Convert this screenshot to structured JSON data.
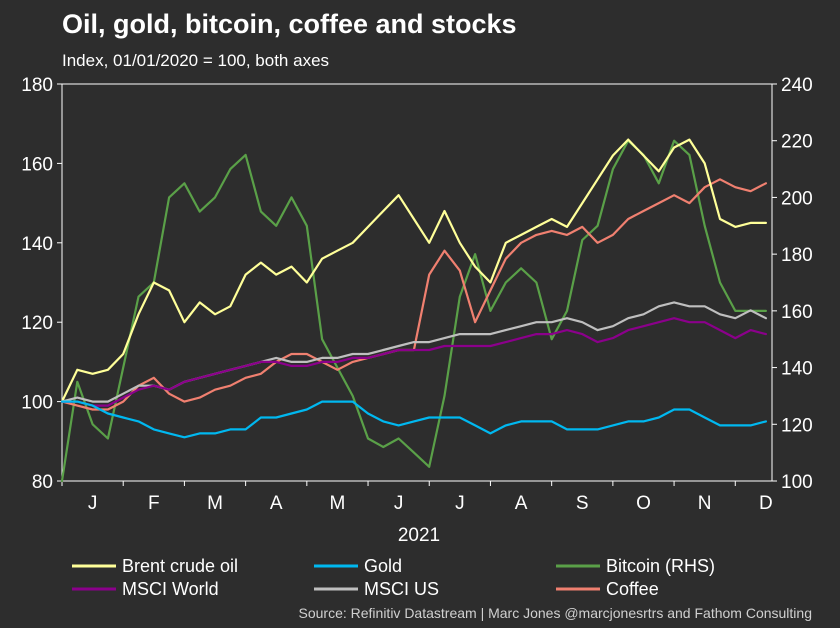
{
  "title": "Oil, gold, bitcoin, coffee and stocks",
  "subtitle": "Index, 01/01/2020 = 100, both axes",
  "source": "Source: Refinitiv Datastream | Marc Jones @marcjonesrtrs and Fathom Consulting",
  "chart_data": {
    "type": "line",
    "title": "Oil, gold, bitcoin, coffee and stocks",
    "subtitle": "Index, 01/01/2020 = 100, both axes",
    "xlabel": "2021",
    "x_ticks": [
      "J",
      "F",
      "M",
      "A",
      "M",
      "J",
      "J",
      "A",
      "S",
      "O",
      "N",
      "D"
    ],
    "y_left": {
      "range": [
        80,
        180
      ],
      "ticks": [
        "80",
        "100",
        "120",
        "140",
        "160",
        "180"
      ]
    },
    "y_right": {
      "range": [
        100,
        240
      ],
      "ticks": [
        "100",
        "120",
        "140",
        "160",
        "180",
        "200",
        "220",
        "240"
      ]
    },
    "x_range": [
      0,
      11.6
    ],
    "grid": false,
    "legend_position": "bottom",
    "series": [
      {
        "name": "Brent crude oil",
        "axis": "left",
        "color": "#ffff99",
        "x": [
          0,
          0.25,
          0.5,
          0.75,
          1,
          1.25,
          1.5,
          1.75,
          2,
          2.25,
          2.5,
          2.75,
          3,
          3.25,
          3.5,
          3.75,
          4,
          4.25,
          4.5,
          4.75,
          5,
          5.25,
          5.5,
          5.75,
          6,
          6.25,
          6.5,
          6.75,
          7,
          7.25,
          7.5,
          7.75,
          8,
          8.25,
          8.5,
          8.75,
          9,
          9.25,
          9.5,
          9.75,
          10,
          10.25,
          10.5,
          10.75,
          11,
          11.25,
          11.5
        ],
        "values": [
          100,
          108,
          107,
          108,
          112,
          122,
          130,
          128,
          120,
          125,
          122,
          124,
          132,
          135,
          132,
          134,
          130,
          136,
          138,
          140,
          144,
          148,
          152,
          146,
          140,
          148,
          140,
          134,
          130,
          140,
          142,
          144,
          146,
          144,
          150,
          156,
          162,
          166,
          162,
          158,
          164,
          166,
          160,
          146,
          144,
          145,
          145
        ]
      },
      {
        "name": "Gold",
        "axis": "left",
        "color": "#00b8f0",
        "x": [
          0,
          0.25,
          0.5,
          0.75,
          1,
          1.25,
          1.5,
          1.75,
          2,
          2.25,
          2.5,
          2.75,
          3,
          3.25,
          3.5,
          3.75,
          4,
          4.25,
          4.5,
          4.75,
          5,
          5.25,
          5.5,
          5.75,
          6,
          6.25,
          6.5,
          6.75,
          7,
          7.25,
          7.5,
          7.75,
          8,
          8.25,
          8.5,
          8.75,
          9,
          9.25,
          9.5,
          9.75,
          10,
          10.25,
          10.5,
          10.75,
          11,
          11.25,
          11.5
        ],
        "values": [
          100,
          100,
          99,
          97,
          96,
          95,
          93,
          92,
          91,
          92,
          92,
          93,
          93,
          96,
          96,
          97,
          98,
          100,
          100,
          100,
          97,
          95,
          94,
          95,
          96,
          96,
          96,
          94,
          92,
          94,
          95,
          95,
          95,
          93,
          93,
          93,
          94,
          95,
          95,
          96,
          98,
          98,
          96,
          94,
          94,
          94,
          95
        ]
      },
      {
        "name": "Bitcoin (RHS)",
        "axis": "right",
        "color": "#5aa048",
        "x": [
          0,
          0.25,
          0.5,
          0.75,
          1,
          1.25,
          1.5,
          1.75,
          2,
          2.25,
          2.5,
          2.75,
          3,
          3.25,
          3.5,
          3.75,
          4,
          4.25,
          4.5,
          4.75,
          5,
          5.25,
          5.5,
          5.75,
          6,
          6.25,
          6.5,
          6.75,
          7,
          7.25,
          7.5,
          7.75,
          8,
          8.25,
          8.5,
          8.75,
          9,
          9.25,
          9.5,
          9.75,
          10,
          10.25,
          10.5,
          10.75,
          11,
          11.25,
          11.5
        ],
        "values": [
          100,
          135,
          120,
          115,
          140,
          165,
          170,
          200,
          205,
          195,
          200,
          210,
          215,
          195,
          190,
          200,
          190,
          150,
          140,
          130,
          115,
          112,
          115,
          110,
          105,
          130,
          165,
          180,
          160,
          170,
          175,
          170,
          150,
          160,
          185,
          190,
          210,
          220,
          215,
          205,
          220,
          215,
          190,
          170,
          160,
          160,
          160
        ]
      },
      {
        "name": "MSCI World",
        "axis": "left",
        "color": "#8b008b",
        "x": [
          0,
          0.25,
          0.5,
          0.75,
          1,
          1.25,
          1.5,
          1.75,
          2,
          2.25,
          2.5,
          2.75,
          3,
          3.25,
          3.5,
          3.75,
          4,
          4.25,
          4.5,
          4.75,
          5,
          5.25,
          5.5,
          5.75,
          6,
          6.25,
          6.5,
          6.75,
          7,
          7.25,
          7.5,
          7.75,
          8,
          8.25,
          8.5,
          8.75,
          9,
          9.25,
          9.5,
          9.75,
          10,
          10.25,
          10.5,
          10.75,
          11,
          11.25,
          11.5
        ],
        "values": [
          100,
          100,
          99,
          99,
          101,
          103,
          104,
          103,
          105,
          106,
          107,
          108,
          109,
          110,
          110,
          109,
          109,
          110,
          110,
          111,
          111,
          112,
          113,
          113,
          113,
          114,
          114,
          114,
          114,
          115,
          116,
          117,
          117,
          118,
          117,
          115,
          116,
          118,
          119,
          120,
          121,
          120,
          120,
          118,
          116,
          118,
          117
        ]
      },
      {
        "name": "MSCI US",
        "axis": "left",
        "color": "#bfbfbf",
        "x": [
          0,
          0.25,
          0.5,
          0.75,
          1,
          1.25,
          1.5,
          1.75,
          2,
          2.25,
          2.5,
          2.75,
          3,
          3.25,
          3.5,
          3.75,
          4,
          4.25,
          4.5,
          4.75,
          5,
          5.25,
          5.5,
          5.75,
          6,
          6.25,
          6.5,
          6.75,
          7,
          7.25,
          7.5,
          7.75,
          8,
          8.25,
          8.5,
          8.75,
          9,
          9.25,
          9.5,
          9.75,
          10,
          10.25,
          10.5,
          10.75,
          11,
          11.25,
          11.5
        ],
        "values": [
          100,
          101,
          100,
          100,
          102,
          104,
          104,
          103,
          105,
          106,
          107,
          108,
          109,
          110,
          111,
          110,
          110,
          111,
          111,
          112,
          112,
          113,
          114,
          115,
          115,
          116,
          117,
          117,
          117,
          118,
          119,
          120,
          120,
          121,
          120,
          118,
          119,
          121,
          122,
          124,
          125,
          124,
          124,
          122,
          121,
          123,
          121
        ]
      },
      {
        "name": "Coffee",
        "axis": "left",
        "color": "#f08070",
        "x": [
          0,
          0.25,
          0.5,
          0.75,
          1,
          1.25,
          1.5,
          1.75,
          2,
          2.25,
          2.5,
          2.75,
          3,
          3.25,
          3.5,
          3.75,
          4,
          4.25,
          4.5,
          4.75,
          5,
          5.25,
          5.5,
          5.75,
          6,
          6.25,
          6.5,
          6.75,
          7,
          7.25,
          7.5,
          7.75,
          8,
          8.25,
          8.5,
          8.75,
          9,
          9.25,
          9.5,
          9.75,
          10,
          10.25,
          10.5,
          10.75,
          11,
          11.25,
          11.5
        ],
        "values": [
          100,
          99,
          98,
          98,
          100,
          104,
          106,
          102,
          100,
          101,
          103,
          104,
          106,
          107,
          110,
          112,
          112,
          110,
          108,
          110,
          111,
          112,
          113,
          113,
          132,
          138,
          133,
          120,
          128,
          136,
          140,
          142,
          143,
          142,
          144,
          140,
          142,
          146,
          148,
          150,
          152,
          150,
          154,
          156,
          154,
          153,
          155
        ]
      }
    ]
  }
}
